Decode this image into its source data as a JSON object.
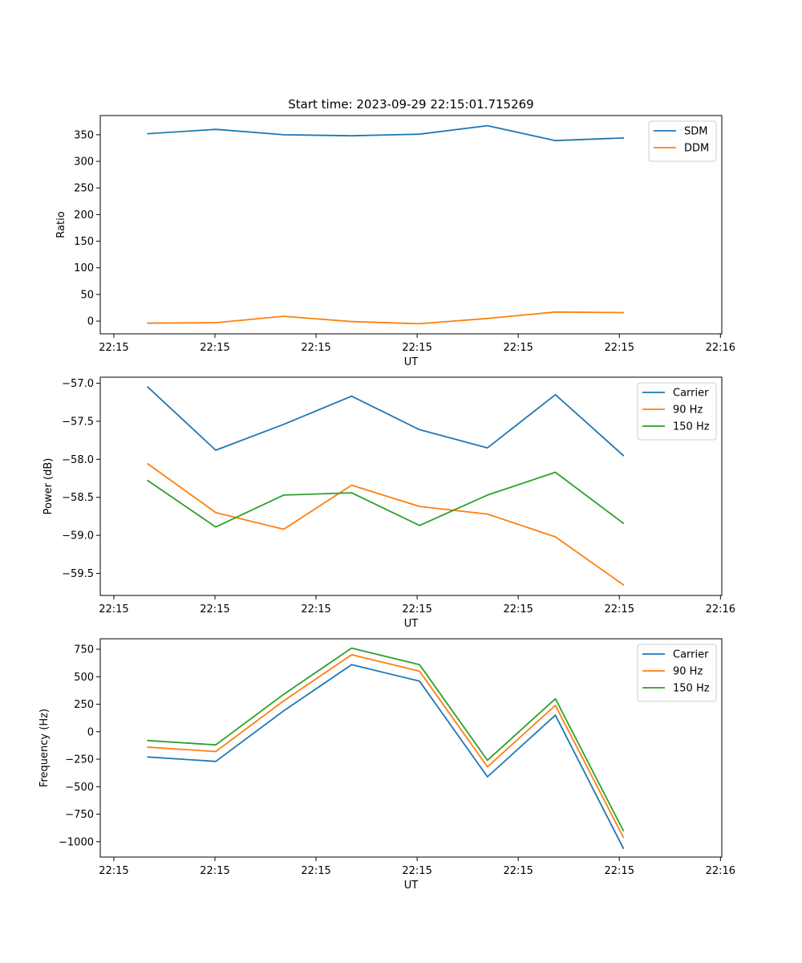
{
  "figure": {
    "title": "Start time: 2023-09-29 22:15:01.715269"
  },
  "chart_data": [
    {
      "type": "line",
      "title": "Start time: 2023-09-29 22:15:01.715269",
      "xlabel": "UT",
      "ylabel": "Ratio",
      "x_tick_labels": [
        "22:15",
        "22:15",
        "22:15",
        "22:15",
        "22:15",
        "22:15",
        "22:16"
      ],
      "y_ticks": [
        0,
        50,
        100,
        150,
        200,
        250,
        300,
        350
      ],
      "ylim": [
        -24,
        386
      ],
      "x": [
        1,
        2,
        3,
        4,
        5,
        6,
        7,
        8
      ],
      "xlim": [
        0.3,
        9.45
      ],
      "legend_position": "upper right",
      "series": [
        {
          "name": "SDM",
          "color": "#1f77b4",
          "values": [
            352,
            360,
            350,
            348,
            351,
            367,
            339,
            344
          ]
        },
        {
          "name": "DDM",
          "color": "#ff7f0e",
          "values": [
            -4,
            -3,
            9,
            -1,
            -5,
            5,
            17,
            16
          ]
        }
      ]
    },
    {
      "type": "line",
      "title": "",
      "xlabel": "UT",
      "ylabel": "Power (dB)",
      "x_tick_labels": [
        "22:15",
        "22:15",
        "22:15",
        "22:15",
        "22:15",
        "22:15",
        "22:16"
      ],
      "y_ticks": [
        -57.0,
        -57.5,
        -58.0,
        -58.5,
        -59.0,
        -59.5
      ],
      "y_tick_labels": [
        "−57.0",
        "−57.5",
        "−58.0",
        "−58.5",
        "−59.0",
        "−59.5"
      ],
      "ylim": [
        -59.79,
        -56.92
      ],
      "x": [
        1,
        2,
        3,
        4,
        5,
        6,
        7,
        8
      ],
      "xlim": [
        0.3,
        9.45
      ],
      "legend_position": "upper right",
      "series": [
        {
          "name": "Carrier",
          "color": "#1f77b4",
          "values": [
            -57.05,
            -57.88,
            -57.54,
            -57.17,
            -57.61,
            -57.85,
            -57.15,
            -57.95
          ]
        },
        {
          "name": "90 Hz",
          "color": "#ff7f0e",
          "values": [
            -58.06,
            -58.7,
            -58.92,
            -58.34,
            -58.62,
            -58.72,
            -59.02,
            -59.65
          ]
        },
        {
          "name": "150 Hz",
          "color": "#2ca02c",
          "values": [
            -58.28,
            -58.89,
            -58.47,
            -58.44,
            -58.87,
            -58.47,
            -58.17,
            -58.84
          ]
        }
      ]
    },
    {
      "type": "line",
      "title": "",
      "xlabel": "UT",
      "ylabel": "Frequency (Hz)",
      "x_tick_labels": [
        "22:15",
        "22:15",
        "22:15",
        "22:15",
        "22:15",
        "22:15",
        "22:16"
      ],
      "y_ticks": [
        -1000,
        -750,
        -500,
        -250,
        0,
        250,
        500,
        750
      ],
      "y_tick_labels": [
        "−1000",
        "−750",
        "−500",
        "−250",
        "0",
        "250",
        "500",
        "750"
      ],
      "ylim": [
        -1140,
        845
      ],
      "x": [
        1,
        2,
        3,
        4,
        5,
        6,
        7,
        8
      ],
      "xlim": [
        0.3,
        9.45
      ],
      "legend_position": "upper right",
      "series": [
        {
          "name": "Carrier",
          "color": "#1f77b4",
          "values": [
            -230,
            -270,
            190,
            610,
            460,
            -410,
            150,
            -1060
          ]
        },
        {
          "name": "90 Hz",
          "color": "#ff7f0e",
          "values": [
            -140,
            -180,
            280,
            700,
            550,
            -320,
            240,
            -960
          ]
        },
        {
          "name": "150 Hz",
          "color": "#2ca02c",
          "values": [
            -80,
            -120,
            340,
            760,
            610,
            -260,
            300,
            -900
          ]
        }
      ]
    }
  ]
}
